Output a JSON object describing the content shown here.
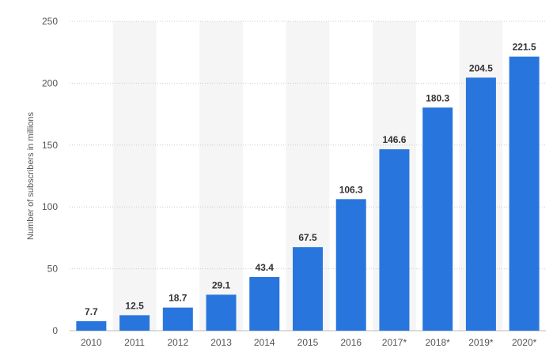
{
  "chart_data": {
    "type": "bar",
    "title": "",
    "xlabel": "",
    "ylabel": "Number of subscribers in millions",
    "categories": [
      "2010",
      "2011",
      "2012",
      "2013",
      "2014",
      "2015",
      "2016",
      "2017*",
      "2018*",
      "2019*",
      "2020*"
    ],
    "values": [
      7.7,
      12.5,
      18.7,
      29.1,
      43.4,
      67.5,
      106.3,
      146.6,
      180.3,
      204.5,
      221.5
    ],
    "value_labels": [
      "7.7",
      "12.5",
      "18.7",
      "29.1",
      "43.4",
      "67.5",
      "106.3",
      "146.6",
      "180.3",
      "204.5",
      "221.5"
    ],
    "ylim": [
      0,
      250
    ],
    "yticks": [
      "0",
      "50",
      "100",
      "150",
      "200",
      "250"
    ],
    "grid": true,
    "bar_color": "#2876dd",
    "band_color": "#f5f5f5",
    "grid_color": "#cccccc"
  }
}
